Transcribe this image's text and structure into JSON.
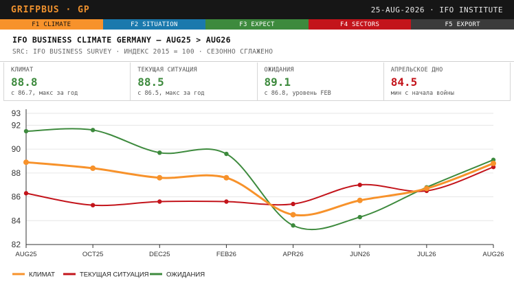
{
  "topbar": {
    "brand": "GRIFPBUS · GP",
    "meta": "25-AUG-2026 · IFO INSTITUTE"
  },
  "fkeys": [
    {
      "label": "F1 CLIMATE",
      "bg": "#f7922b",
      "fg": "#111111"
    },
    {
      "label": "F2 SITUATION",
      "bg": "#1a79ad",
      "fg": "#ffffff"
    },
    {
      "label": "F3 EXPECT",
      "bg": "#3d8a3d",
      "fg": "#ffffff"
    },
    {
      "label": "F4 SECTORS",
      "bg": "#c3141b",
      "fg": "#ffffff"
    },
    {
      "label": "F5 EXPORT",
      "bg": "#3b3b3b",
      "fg": "#ffffff"
    }
  ],
  "header": {
    "title": "IFO BUSINESS CLIMATE GERMANY — AUG25 > AUG26",
    "source": "SRC: IFO BUSINESS SURVEY · ИНДЕКС 2015 = 100 · СЕЗОННО СГЛАЖЕНО"
  },
  "kpis": [
    {
      "label": "КЛИМАТ",
      "value": "88.8",
      "note": "с 86.7, макс за год",
      "color": "#3d8a3d"
    },
    {
      "label": "ТЕКУЩАЯ СИТУАЦИЯ",
      "value": "88.5",
      "note": "с 86.5, макс за год",
      "color": "#3d8a3d"
    },
    {
      "label": "ОЖИДАНИЯ",
      "value": "89.1",
      "note": "с 86.8, уровень FEB",
      "color": "#3d8a3d"
    },
    {
      "label": "АПРЕЛЬСКОЕ ДНО",
      "value": "84.5",
      "note": "мин с начала войны",
      "color": "#c3141b"
    }
  ],
  "chart_data": {
    "type": "line",
    "x": [
      "AUG25",
      "OCT25",
      "DEC25",
      "FEB26",
      "APR26",
      "JUN26",
      "JUL26",
      "AUG26"
    ],
    "ylim": [
      82,
      93
    ],
    "yticks": [
      82,
      84,
      86,
      88,
      90,
      92,
      93
    ],
    "grid": "y",
    "legend_position": "bottom-left",
    "series": [
      {
        "name": "КЛИМАТ",
        "color": "#f7922b",
        "values": [
          88.9,
          88.4,
          87.6,
          87.6,
          84.5,
          85.7,
          86.7,
          88.8
        ]
      },
      {
        "name": "ТЕКУЩАЯ СИТУАЦИЯ",
        "color": "#c3141b",
        "values": [
          86.3,
          85.3,
          85.6,
          85.6,
          85.4,
          87.0,
          86.5,
          88.5
        ]
      },
      {
        "name": "ОЖИДАНИЯ",
        "color": "#3d8a3d",
        "values": [
          91.5,
          91.6,
          89.7,
          89.6,
          83.6,
          84.3,
          86.8,
          89.1
        ]
      }
    ]
  }
}
